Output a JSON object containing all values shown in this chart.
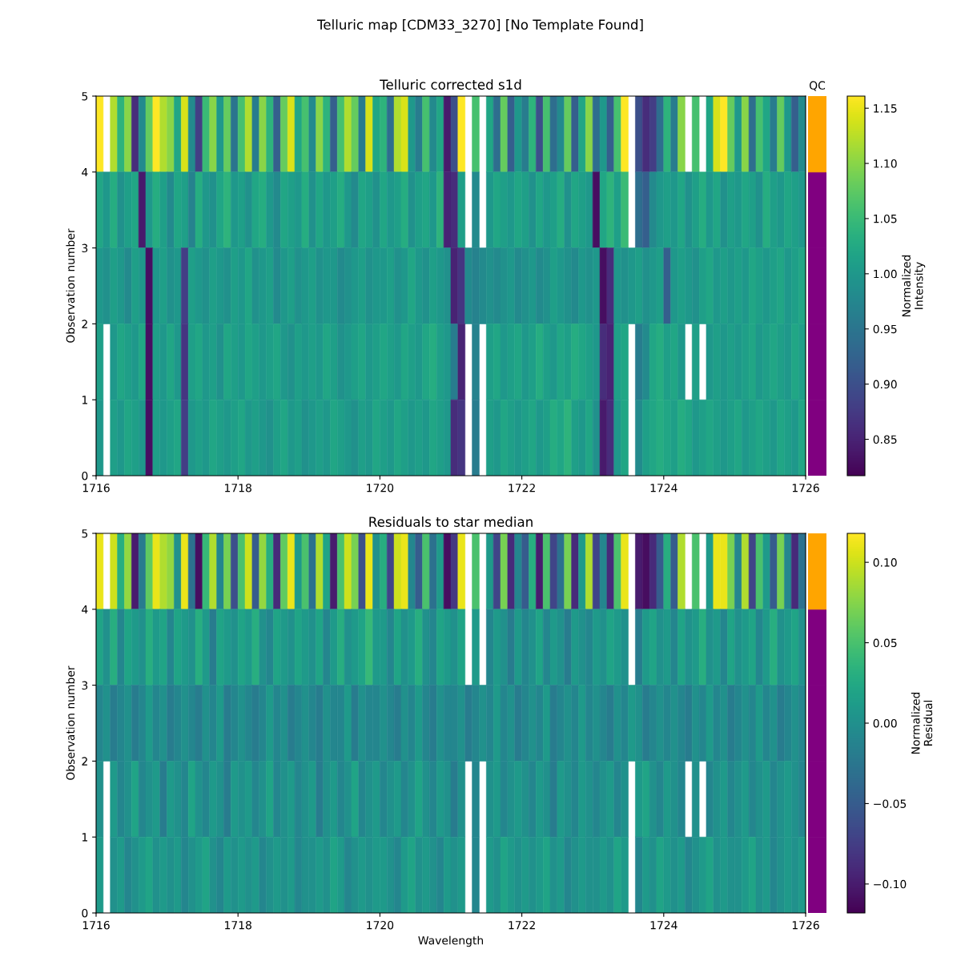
{
  "chart_data": [
    {
      "type": "heatmap",
      "title": "Telluric corrected s1d",
      "ylabel": "Observation number",
      "clabel": "Normalized\nIntensity",
      "annotations": [
        "Telluric map [CDM33_3270] [No Template Found]"
      ],
      "x": [
        1716.05,
        1716.15,
        1716.25,
        1716.35,
        1716.45,
        1716.55,
        1716.65,
        1716.75,
        1716.85,
        1716.95,
        1717.05,
        1717.15,
        1717.25,
        1717.35,
        1717.45,
        1717.55,
        1717.65,
        1717.75,
        1717.85,
        1717.95,
        1718.05,
        1718.15,
        1718.25,
        1718.35,
        1718.45,
        1718.55,
        1718.65,
        1718.75,
        1718.85,
        1718.95,
        1719.05,
        1719.15,
        1719.25,
        1719.35,
        1719.45,
        1719.55,
        1719.65,
        1719.75,
        1719.85,
        1719.95,
        1720.05,
        1720.15,
        1720.25,
        1720.35,
        1720.45,
        1720.55,
        1720.65,
        1720.75,
        1720.85,
        1720.95,
        1721.05,
        1721.15,
        1721.25,
        1721.35,
        1721.45,
        1721.55,
        1721.65,
        1721.75,
        1721.85,
        1721.95,
        1722.05,
        1722.15,
        1722.25,
        1722.35,
        1722.45,
        1722.55,
        1722.65,
        1722.75,
        1722.85,
        1722.95,
        1723.05,
        1723.15,
        1723.25,
        1723.35,
        1723.45,
        1723.55,
        1723.65,
        1723.75,
        1723.85,
        1723.95,
        1724.05,
        1724.15,
        1724.25,
        1724.35,
        1724.45,
        1724.55,
        1724.65,
        1724.75,
        1724.85,
        1724.95,
        1725.05,
        1725.15,
        1725.25,
        1725.35,
        1725.45,
        1725.55,
        1725.65,
        1725.75,
        1725.85,
        1725.95
      ],
      "xlim": [
        1716,
        1726
      ],
      "xticks": [
        1716,
        1718,
        1720,
        1722,
        1724,
        1726
      ],
      "ylim": [
        0,
        5
      ],
      "yticks": [
        0,
        1,
        2,
        3,
        4,
        5
      ],
      "clim": [
        0.817,
        1.161
      ],
      "cticks": [
        {
          "value": 0.85,
          "label": "0.85"
        },
        {
          "value": 0.9,
          "label": "0.90"
        },
        {
          "value": 0.95,
          "label": "0.95"
        },
        {
          "value": 1.0,
          "label": "1.00"
        },
        {
          "value": 1.05,
          "label": "1.05"
        },
        {
          "value": 1.1,
          "label": "1.10"
        },
        {
          "value": 1.15,
          "label": "1.15"
        }
      ],
      "cells": [
        [
          1.16,
          null,
          1.12,
          1.04,
          1.1,
          0.86,
          0.98,
          1.08,
          1.16,
          1.12,
          1.1,
          1.02,
          1.14,
          0.98,
          0.88,
          1.05,
          1.1,
          1.0,
          1.08,
          0.95,
          1.06,
          1.12,
          0.96,
          1.1,
          1.04,
          0.92,
          1.08,
          1.14,
          1.02,
          1.06,
          0.98,
          1.1,
          1.04,
          0.92,
          1.06,
          1.12,
          1.08,
          0.96,
          1.14,
          1.02,
          1.04,
          0.94,
          1.12,
          1.14,
          1.0,
          0.96,
          1.06,
          0.98,
          1.02,
          0.84,
          0.9,
          1.16,
          null,
          1.06,
          null,
          1.02,
          0.94,
          1.08,
          0.92,
          1.0,
          0.96,
          1.04,
          0.9,
          1.06,
          0.94,
          0.98,
          1.08,
          0.92,
          1.02,
          1.1,
          0.94,
          1.0,
          0.92,
          1.06,
          1.16,
          null,
          0.9,
          0.86,
          0.88,
          0.94,
          1.04,
          0.96,
          1.1,
          null,
          1.06,
          null,
          1.02,
          1.14,
          1.16,
          1.08,
          1.0,
          1.1,
          0.94,
          1.06,
          1.02,
          0.96,
          1.08,
          1.0,
          0.92,
          0.98
        ],
        [
          1.02,
          1.0,
          1.03,
          0.99,
          1.01,
          1.02,
          0.84,
          1.0,
          1.03,
          1.01,
          0.98,
          1.02,
          1.01,
          0.97,
          1.03,
          1.0,
          0.99,
          1.02,
          1.04,
          1.0,
          1.01,
          0.99,
          1.02,
          1.03,
          1.0,
          0.98,
          1.02,
          1.01,
          1.0,
          1.03,
          0.99,
          1.02,
          1.0,
          1.01,
          1.03,
          1.0,
          0.98,
          1.02,
          1.01,
          0.99,
          1.02,
          1.0,
          1.01,
          1.03,
          0.99,
          1.01,
          1.02,
          1.0,
          1.04,
          0.85,
          0.86,
          1.01,
          null,
          0.98,
          null,
          1.0,
          1.02,
          1.01,
          1.0,
          1.02,
          1.01,
          0.99,
          1.02,
          1.0,
          1.01,
          1.03,
          0.99,
          1.02,
          1.01,
          1.0,
          0.83,
          1.02,
          1.04,
          1.01,
          1.05,
          null,
          0.94,
          0.92,
          0.98,
          1.0,
          1.01,
          1.0,
          1.02,
          0.99,
          1.01,
          1.03,
          1.0,
          1.02,
          0.99,
          1.01,
          1.0,
          1.02,
          1.01,
          0.99,
          1.03,
          1.01,
          1.0,
          1.02,
          1.01,
          1.0
        ],
        [
          1.0,
          0.99,
          1.01,
          1.0,
          0.98,
          1.01,
          1.0,
          0.83,
          1.0,
          1.01,
          0.99,
          1.0,
          0.88,
          1.01,
          1.0,
          0.99,
          1.01,
          1.0,
          0.99,
          1.01,
          1.0,
          1.02,
          0.99,
          1.0,
          1.01,
          0.98,
          1.0,
          1.01,
          0.99,
          1.0,
          1.01,
          0.99,
          1.0,
          1.0,
          0.98,
          0.99,
          1.0,
          1.01,
          0.99,
          1.0,
          1.0,
          1.01,
          0.99,
          1.0,
          1.02,
          1.0,
          0.99,
          1.01,
          1.0,
          0.99,
          0.85,
          0.87,
          0.98,
          0.97,
          0.98,
          0.99,
          0.98,
          0.99,
          1.0,
          0.98,
          0.99,
          1.0,
          0.98,
          0.99,
          1.01,
          1.0,
          0.99,
          0.98,
          1.0,
          0.99,
          1.0,
          0.83,
          0.86,
          1.0,
          0.99,
          1.0,
          1.01,
          0.99,
          1.0,
          1.01,
          0.92,
          1.0,
          1.01,
          1.0,
          0.99,
          1.01,
          1.02,
          1.0,
          1.01,
          1.0,
          1.01,
          1.0,
          1.02,
          1.01,
          1.0,
          1.01,
          1.02,
          1.0,
          1.01,
          1.02
        ],
        [
          1.01,
          null,
          1.0,
          1.02,
          1.01,
          1.0,
          1.02,
          0.83,
          1.01,
          1.0,
          1.02,
          1.0,
          0.87,
          1.01,
          1.02,
          1.0,
          1.01,
          0.99,
          1.02,
          1.01,
          1.0,
          1.02,
          1.01,
          1.0,
          1.01,
          1.02,
          1.0,
          0.99,
          1.01,
          1.0,
          1.01,
          1.0,
          1.02,
          1.01,
          0.99,
          1.0,
          1.01,
          1.02,
          1.0,
          1.01,
          1.02,
          1.01,
          1.0,
          1.02,
          1.01,
          1.0,
          1.02,
          1.03,
          1.01,
          1.0,
          0.96,
          0.85,
          null,
          0.97,
          null,
          1.01,
          1.02,
          1.0,
          1.01,
          1.02,
          1.0,
          1.01,
          1.03,
          1.01,
          1.0,
          1.02,
          1.01,
          1.03,
          1.02,
          1.01,
          1.0,
          0.86,
          0.85,
          1.01,
          1.02,
          null,
          0.96,
          0.98,
          1.02,
          1.03,
          1.01,
          1.02,
          1.0,
          null,
          1.01,
          null,
          1.0,
          1.01,
          1.0,
          1.01,
          1.0,
          1.01,
          1.02,
          1.0,
          1.01,
          1.02,
          1.01,
          1.0,
          1.02,
          1.01
        ],
        [
          1.0,
          null,
          1.01,
          1.0,
          1.02,
          1.01,
          1.0,
          0.83,
          1.01,
          1.0,
          1.01,
          1.02,
          0.88,
          1.0,
          1.01,
          1.0,
          1.02,
          1.01,
          1.0,
          1.01,
          1.02,
          1.0,
          1.01,
          1.0,
          0.99,
          1.01,
          1.02,
          1.0,
          1.01,
          0.99,
          1.0,
          1.01,
          1.0,
          1.02,
          1.01,
          1.0,
          0.99,
          1.01,
          1.0,
          1.02,
          1.01,
          1.0,
          1.02,
          1.01,
          1.0,
          1.01,
          1.0,
          1.02,
          1.01,
          1.0,
          0.86,
          0.87,
          null,
          0.96,
          null,
          1.01,
          1.0,
          1.02,
          1.01,
          1.0,
          1.01,
          1.02,
          1.0,
          1.01,
          1.03,
          1.02,
          1.04,
          1.01,
          1.0,
          1.02,
          0.99,
          0.84,
          0.86,
          1.0,
          1.02,
          null,
          0.98,
          1.01,
          1.02,
          1.03,
          1.02,
          1.01,
          1.03,
          1.02,
          1.0,
          1.01,
          1.02,
          1.01,
          1.0,
          1.01,
          1.02,
          1.0,
          1.01,
          1.02,
          1.01,
          1.0,
          1.02,
          1.01,
          1.0,
          1.02
        ]
      ]
    },
    {
      "type": "bar",
      "title": "QC",
      "categories": [
        null
      ],
      "stacked": true,
      "ylim": [
        0,
        5
      ],
      "series": [
        {
          "color": "#800080",
          "values": [
            1
          ]
        },
        {
          "color": "#800080",
          "values": [
            1
          ]
        },
        {
          "color": "#800080",
          "values": [
            1
          ]
        },
        {
          "color": "#800080",
          "values": [
            1
          ]
        },
        {
          "color": "#ffa500",
          "values": [
            1
          ]
        }
      ]
    },
    {
      "type": "heatmap",
      "title": "Residuals to star median",
      "xlabel": "Wavelength",
      "ylabel": "Observation number",
      "clabel": "Normalized\nResidual",
      "x": [
        1716.05,
        1716.15,
        1716.25,
        1716.35,
        1716.45,
        1716.55,
        1716.65,
        1716.75,
        1716.85,
        1716.95,
        1717.05,
        1717.15,
        1717.25,
        1717.35,
        1717.45,
        1717.55,
        1717.65,
        1717.75,
        1717.85,
        1717.95,
        1718.05,
        1718.15,
        1718.25,
        1718.35,
        1718.45,
        1718.55,
        1718.65,
        1718.75,
        1718.85,
        1718.95,
        1719.05,
        1719.15,
        1719.25,
        1719.35,
        1719.45,
        1719.55,
        1719.65,
        1719.75,
        1719.85,
        1719.95,
        1720.05,
        1720.15,
        1720.25,
        1720.35,
        1720.45,
        1720.55,
        1720.65,
        1720.75,
        1720.85,
        1720.95,
        1721.05,
        1721.15,
        1721.25,
        1721.35,
        1721.45,
        1721.55,
        1721.65,
        1721.75,
        1721.85,
        1721.95,
        1722.05,
        1722.15,
        1722.25,
        1722.35,
        1722.45,
        1722.55,
        1722.65,
        1722.75,
        1722.85,
        1722.95,
        1723.05,
        1723.15,
        1723.25,
        1723.35,
        1723.45,
        1723.55,
        1723.65,
        1723.75,
        1723.85,
        1723.95,
        1724.05,
        1724.15,
        1724.25,
        1724.35,
        1724.45,
        1724.55,
        1724.65,
        1724.75,
        1724.85,
        1724.95,
        1725.05,
        1725.15,
        1725.25,
        1725.35,
        1725.45,
        1725.55,
        1725.65,
        1725.75,
        1725.85,
        1725.95
      ],
      "xlim": [
        1716,
        1726
      ],
      "xticks": [
        1716,
        1718,
        1720,
        1722,
        1724,
        1726
      ],
      "ylim": [
        0,
        5
      ],
      "yticks": [
        0,
        1,
        2,
        3,
        4,
        5
      ],
      "clim": [
        -0.118,
        0.118
      ],
      "cticks": [
        {
          "value": -0.1,
          "label": "−0.10"
        },
        {
          "value": -0.05,
          "label": "−0.05"
        },
        {
          "value": 0,
          "label": "0.00"
        },
        {
          "value": 0.05,
          "label": "0.05"
        },
        {
          "value": 0.1,
          "label": "0.10"
        }
      ],
      "cells": [
        [
          0.11,
          null,
          0.1,
          0.03,
          0.08,
          -0.1,
          -0.02,
          0.06,
          0.11,
          0.09,
          0.08,
          0.0,
          0.11,
          -0.03,
          -0.11,
          0.04,
          0.09,
          -0.01,
          0.07,
          -0.06,
          0.05,
          0.1,
          -0.05,
          0.08,
          0.03,
          -0.09,
          0.06,
          0.11,
          0.01,
          0.05,
          -0.03,
          0.09,
          0.02,
          -0.1,
          0.05,
          0.1,
          0.07,
          -0.06,
          0.11,
          0.0,
          0.03,
          -0.07,
          0.1,
          0.11,
          -0.01,
          -0.05,
          0.05,
          -0.03,
          0.01,
          -0.11,
          -0.08,
          0.11,
          null,
          0.05,
          null,
          0.01,
          -0.07,
          0.07,
          -0.09,
          -0.01,
          -0.05,
          0.03,
          -0.1,
          0.05,
          -0.07,
          -0.03,
          0.07,
          -0.09,
          0.01,
          0.09,
          -0.07,
          -0.01,
          -0.09,
          0.05,
          0.11,
          null,
          -0.1,
          -0.11,
          -0.09,
          -0.05,
          0.03,
          -0.05,
          0.09,
          null,
          0.05,
          null,
          0.01,
          0.11,
          0.11,
          0.07,
          -0.01,
          0.09,
          -0.07,
          0.05,
          0.01,
          -0.05,
          0.07,
          -0.01,
          -0.09,
          -0.03
        ],
        [
          0.02,
          0.0,
          0.03,
          -0.01,
          0.02,
          0.01,
          0.0,
          0.03,
          0.01,
          0.02,
          -0.01,
          0.02,
          0.01,
          0.0,
          0.03,
          0.01,
          -0.02,
          0.02,
          0.01,
          0.0,
          0.02,
          0.01,
          0.03,
          0.0,
          -0.01,
          0.02,
          0.01,
          0.0,
          0.02,
          0.01,
          0.0,
          0.02,
          -0.01,
          0.01,
          0.03,
          0.0,
          0.01,
          0.02,
          0.04,
          0.01,
          0.01,
          -0.01,
          0.02,
          0.0,
          0.01,
          0.03,
          0.0,
          -0.01,
          0.02,
          0.01,
          0.0,
          0.02,
          null,
          0.01,
          null,
          -0.01,
          0.01,
          0.0,
          -0.02,
          0.01,
          -0.01,
          0.0,
          0.02,
          -0.01,
          0.01,
          0.0,
          -0.02,
          0.01,
          0.0,
          -0.01,
          0.01,
          0.0,
          0.02,
          0.01,
          0.0,
          null,
          -0.02,
          0.01,
          0.02,
          0.0,
          0.01,
          -0.01,
          0.02,
          0.0,
          0.01,
          0.03,
          0.0,
          0.01,
          -0.01,
          0.02,
          0.0,
          0.01,
          0.02,
          -0.01,
          0.01,
          0.03,
          0.0,
          0.01,
          0.02,
          0.0
        ],
        [
          -0.01,
          0.0,
          -0.02,
          -0.01,
          0.0,
          -0.02,
          -0.01,
          0.01,
          -0.01,
          0.0,
          -0.02,
          -0.01,
          0.0,
          -0.01,
          -0.02,
          0.0,
          -0.01,
          0.01,
          -0.02,
          -0.01,
          0.0,
          -0.01,
          -0.02,
          -0.01,
          0.01,
          -0.01,
          0.0,
          -0.02,
          -0.01,
          0.0,
          -0.01,
          -0.02,
          0.0,
          -0.01,
          -0.01,
          0.01,
          -0.02,
          0.0,
          -0.01,
          -0.01,
          0.0,
          -0.01,
          -0.02,
          0.0,
          -0.01,
          0.01,
          -0.01,
          -0.02,
          0.0,
          -0.01,
          -0.01,
          0.0,
          -0.02,
          -0.01,
          0.0,
          -0.01,
          0.01,
          -0.01,
          0.0,
          -0.02,
          -0.01,
          0.0,
          -0.01,
          0.01,
          -0.02,
          -0.01,
          0.0,
          -0.01,
          0.01,
          -0.01,
          0.0,
          -0.01,
          -0.02,
          0.0,
          -0.01,
          0.01,
          0.0,
          -0.02,
          -0.01,
          0.0,
          -0.01,
          0.0,
          -0.01,
          -0.02,
          0.0,
          -0.01,
          0.01,
          -0.01,
          0.0,
          -0.02,
          -0.01,
          0.0,
          -0.01,
          0.01,
          -0.01,
          0.0,
          -0.02,
          -0.01,
          0.0,
          -0.01
        ],
        [
          0.0,
          null,
          0.01,
          -0.01,
          0.0,
          0.02,
          -0.01,
          0.0,
          0.01,
          -0.02,
          0.01,
          0.0,
          -0.01,
          0.02,
          0.0,
          -0.01,
          0.01,
          0.0,
          -0.02,
          0.01,
          0.0,
          0.01,
          -0.01,
          0.0,
          0.02,
          -0.01,
          0.0,
          0.01,
          -0.01,
          0.0,
          0.01,
          -0.02,
          0.0,
          0.01,
          -0.01,
          0.0,
          0.02,
          -0.01,
          0.0,
          0.01,
          -0.01,
          0.0,
          0.01,
          -0.01,
          0.0,
          0.02,
          0.0,
          -0.01,
          0.01,
          0.0,
          -0.02,
          0.0,
          null,
          -0.01,
          null,
          0.0,
          0.01,
          -0.01,
          0.0,
          0.01,
          0.0,
          -0.01,
          0.01,
          0.0,
          -0.02,
          0.01,
          0.0,
          -0.01,
          0.01,
          0.0,
          -0.01,
          0.0,
          0.01,
          -0.01,
          0.0,
          null,
          0.01,
          0.02,
          0.0,
          -0.01,
          0.01,
          0.0,
          -0.01,
          null,
          0.0,
          null,
          -0.01,
          0.0,
          0.01,
          -0.01,
          0.0,
          0.01,
          -0.01,
          0.0,
          0.01,
          -0.01,
          0.0,
          0.01,
          0.0,
          -0.01
        ],
        [
          0.01,
          null,
          0.0,
          0.01,
          -0.01,
          0.0,
          0.01,
          0.02,
          0.0,
          0.01,
          0.0,
          0.01,
          -0.01,
          0.0,
          0.01,
          0.02,
          0.0,
          -0.01,
          0.01,
          0.0,
          0.01,
          0.0,
          0.01,
          -0.01,
          0.0,
          0.01,
          0.0,
          0.01,
          -0.01,
          0.0,
          0.0,
          0.01,
          0.0,
          0.02,
          0.01,
          -0.01,
          0.0,
          0.01,
          0.0,
          0.01,
          0.01,
          0.0,
          -0.01,
          0.01,
          0.02,
          0.0,
          0.01,
          0.0,
          -0.01,
          0.01,
          0.0,
          0.01,
          null,
          -0.01,
          null,
          0.01,
          0.0,
          0.02,
          0.01,
          0.0,
          0.01,
          0.0,
          0.01,
          0.02,
          0.0,
          0.01,
          -0.01,
          0.0,
          0.01,
          0.0,
          0.0,
          0.01,
          0.0,
          0.02,
          0.01,
          null,
          -0.01,
          0.01,
          0.0,
          0.02,
          0.01,
          0.0,
          0.01,
          -0.01,
          0.0,
          0.01,
          0.02,
          0.0,
          0.01,
          0.0,
          0.0,
          0.01,
          0.02,
          0.0,
          0.01,
          -0.01,
          0.0,
          0.01,
          0.0,
          0.01
        ]
      ]
    },
    {
      "type": "bar",
      "categories": [
        null
      ],
      "stacked": true,
      "ylim": [
        0,
        5
      ],
      "series": [
        {
          "color": "#800080",
          "values": [
            1
          ]
        },
        {
          "color": "#800080",
          "values": [
            1
          ]
        },
        {
          "color": "#800080",
          "values": [
            1
          ]
        },
        {
          "color": "#800080",
          "values": [
            1
          ]
        },
        {
          "color": "#ffa500",
          "values": [
            1
          ]
        }
      ]
    }
  ]
}
